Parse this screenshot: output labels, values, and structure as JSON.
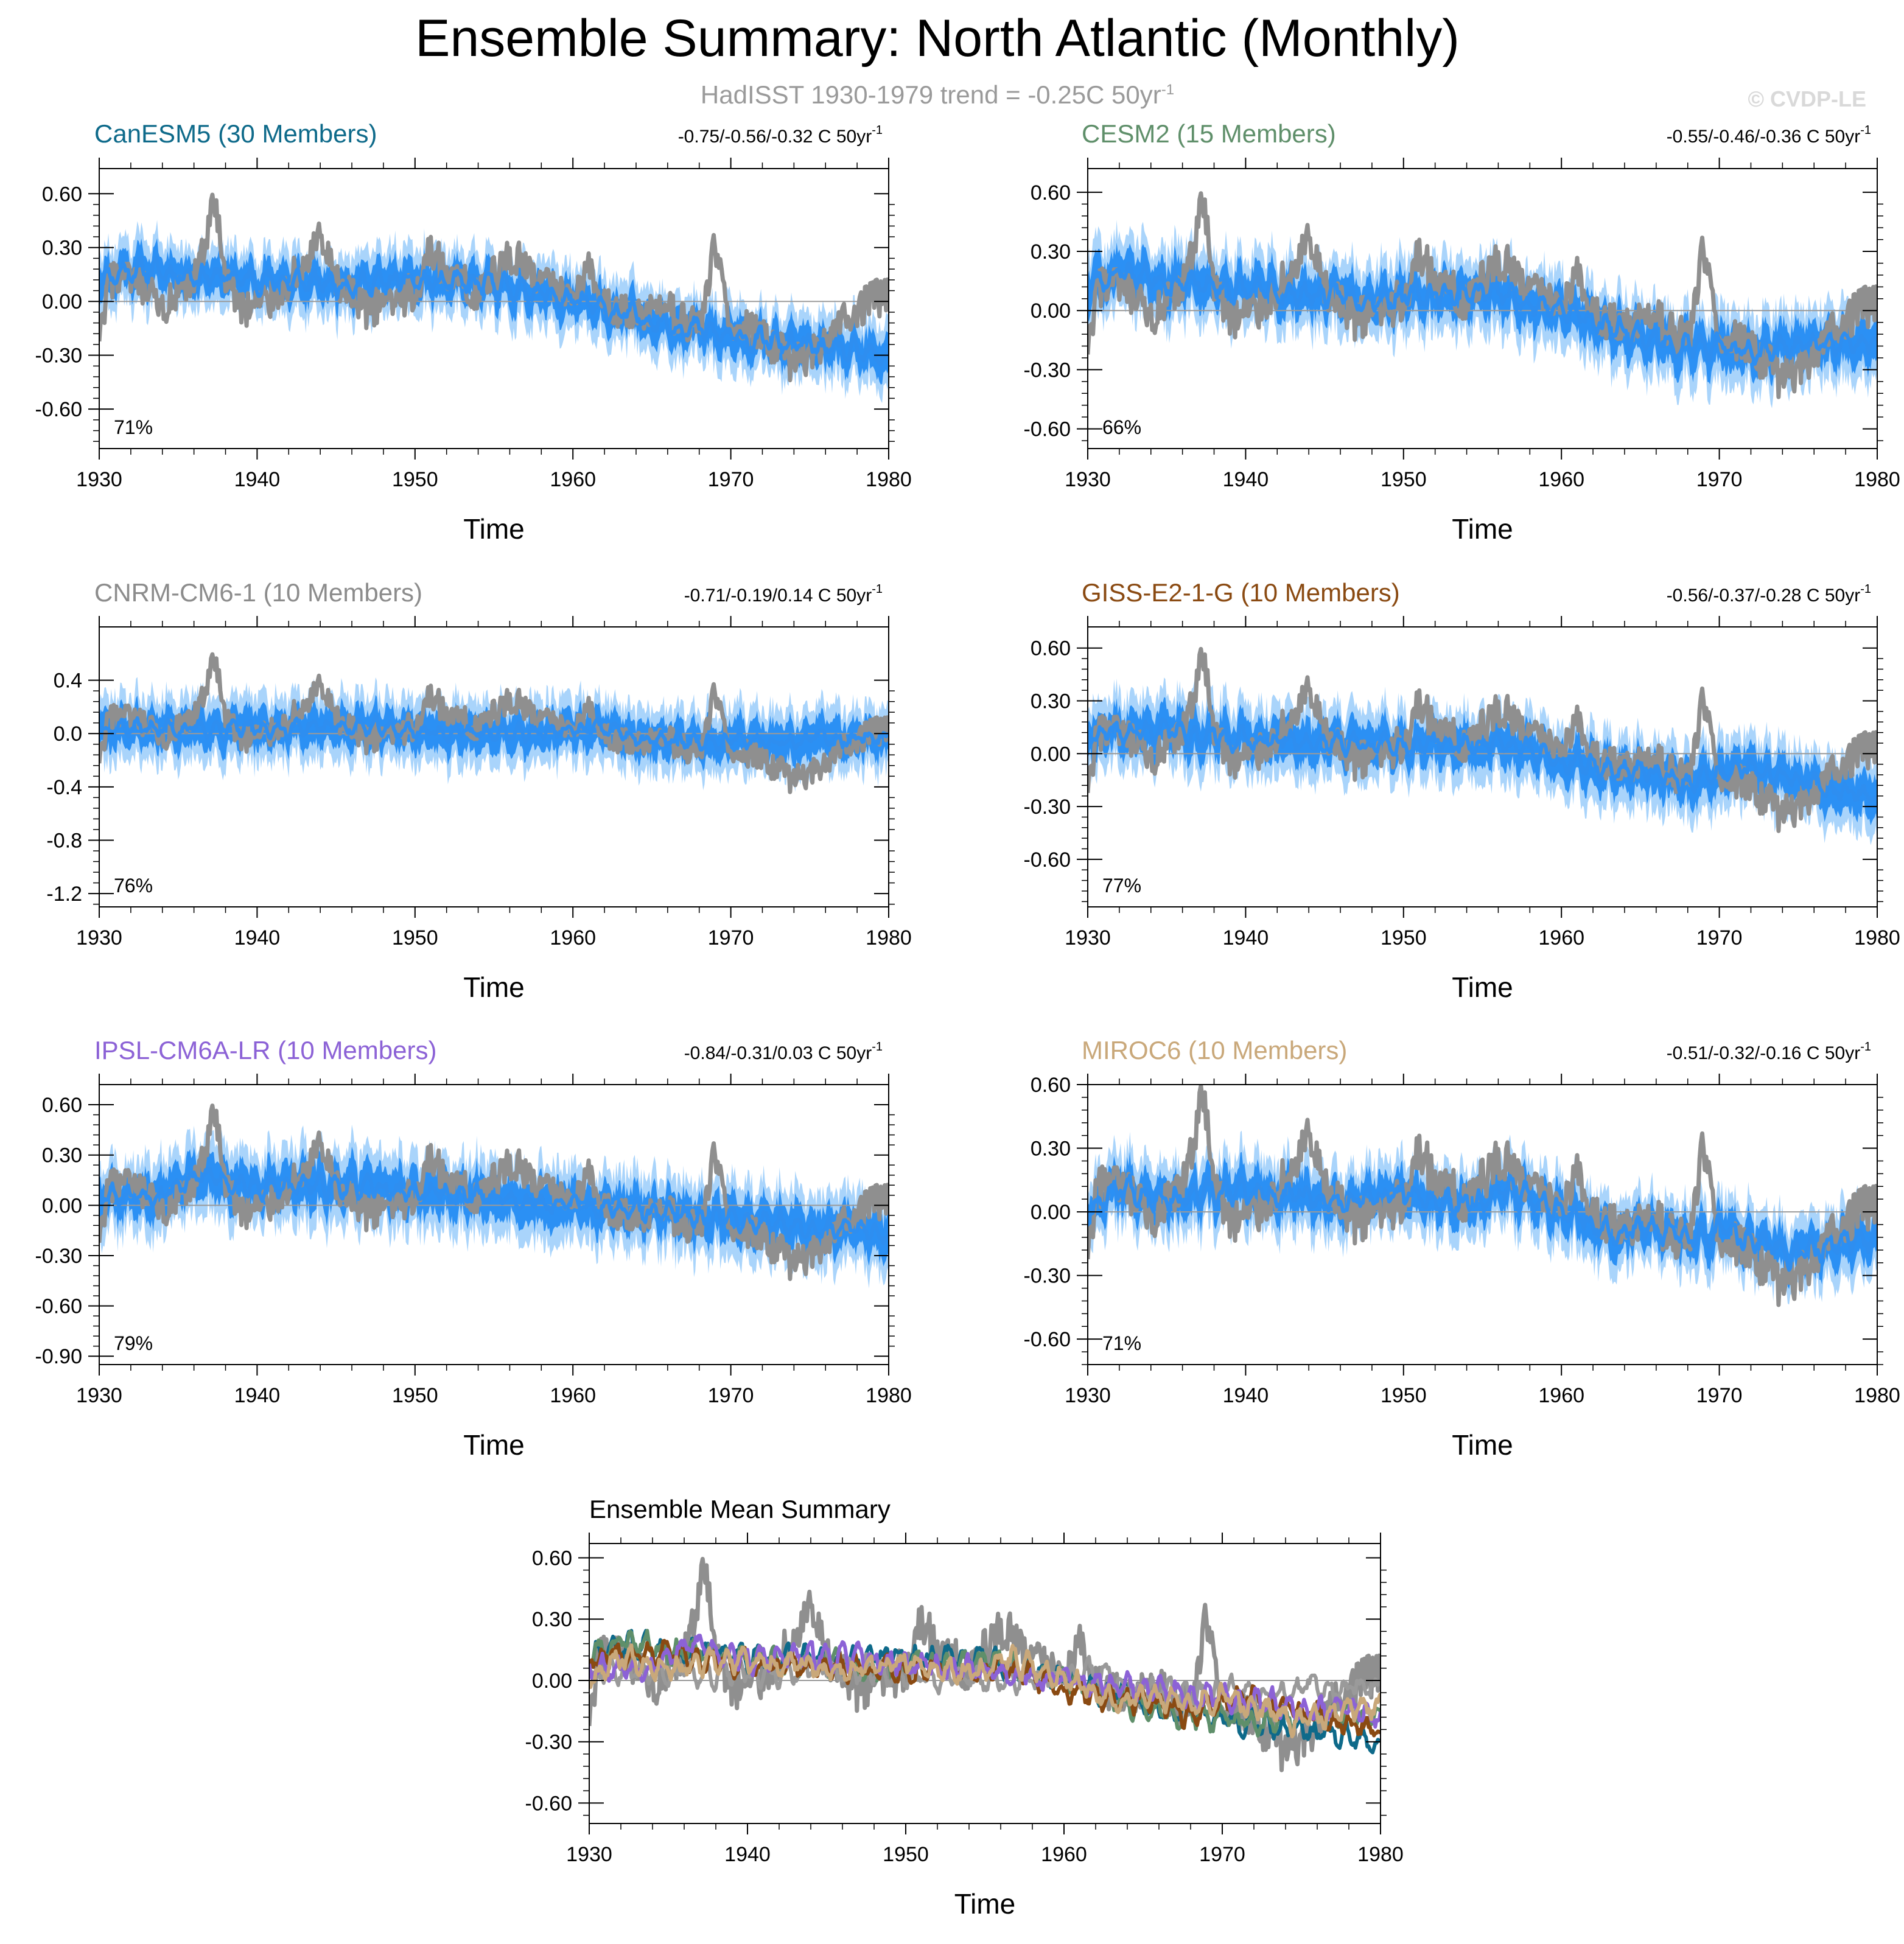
{
  "title": "Ensemble Summary: North Atlantic (Monthly)",
  "subtitle": "HadISST 1930-1979 trend = -0.25C 50yr",
  "subtitle_superscript": "-1",
  "watermark": "© CVDP-LE",
  "colors": {
    "observations": "#8f8f8f",
    "ensemble_mean": "#2e8ef0",
    "range_light": "#a9d4fb",
    "range_dark": "#2b90f4"
  },
  "chart_data": [
    {
      "id": "canesm5",
      "type": "area",
      "title": "CanESM5 (30 Members)",
      "title_color": "#0e6a8a",
      "trend_label": "-0.75/-0.56/-0.32 C 50yr",
      "trend_superscript": "-1",
      "percent_label": "71%",
      "xlabel": "Time",
      "xlim": [
        1930,
        1980
      ],
      "ylim": [
        -0.82,
        0.74
      ],
      "yticks": [
        0.6,
        0.3,
        0.0,
        -0.3,
        -0.6
      ],
      "ytick_labels": [
        "0.60",
        "0.30",
        "0.00",
        "-0.30",
        "-0.60"
      ],
      "xticks": [
        1930,
        1940,
        1950,
        1960,
        1970,
        1980
      ],
      "xtick_labels": [
        "1930",
        "1940",
        "1950",
        "1960",
        "1970",
        "1980"
      ],
      "ensemble_mean_anchors": [
        [
          1930,
          0.13
        ],
        [
          1932,
          0.18
        ],
        [
          1936,
          0.15
        ],
        [
          1940,
          0.12
        ],
        [
          1945,
          0.1
        ],
        [
          1950,
          0.11
        ],
        [
          1955,
          0.09
        ],
        [
          1958,
          0.05
        ],
        [
          1962,
          -0.05
        ],
        [
          1966,
          -0.12
        ],
        [
          1970,
          -0.2
        ],
        [
          1975,
          -0.25
        ],
        [
          1980,
          -0.32
        ]
      ],
      "spread": 0.16,
      "seed": 11
    },
    {
      "id": "cesm2",
      "type": "area",
      "title": "CESM2 (15 Members)",
      "title_color": "#5f8f6a",
      "trend_label": "-0.55/-0.46/-0.36 C 50yr",
      "trend_superscript": "-1",
      "percent_label": "66%",
      "xlabel": "Time",
      "xlim": [
        1930,
        1980
      ],
      "ylim": [
        -0.7,
        0.72
      ],
      "yticks": [
        0.6,
        0.3,
        0.0,
        -0.3,
        -0.6
      ],
      "ytick_labels": [
        "0.60",
        "0.30",
        "0.00",
        "-0.30",
        "-0.60"
      ],
      "xticks": [
        1930,
        1940,
        1950,
        1960,
        1970,
        1980
      ],
      "xtick_labels": [
        "1930",
        "1940",
        "1950",
        "1960",
        "1970",
        "1980"
      ],
      "ensemble_mean_anchors": [
        [
          1930,
          0.12
        ],
        [
          1932,
          0.2
        ],
        [
          1936,
          0.14
        ],
        [
          1940,
          0.1
        ],
        [
          1945,
          0.08
        ],
        [
          1950,
          0.07
        ],
        [
          1955,
          0.1
        ],
        [
          1958,
          0.05
        ],
        [
          1962,
          -0.05
        ],
        [
          1966,
          -0.15
        ],
        [
          1970,
          -0.2
        ],
        [
          1975,
          -0.18
        ],
        [
          1980,
          -0.17
        ]
      ],
      "spread": 0.17,
      "seed": 23
    },
    {
      "id": "cnrm",
      "type": "area",
      "title": "CNRM-CM6-1 (10 Members)",
      "title_color": "#8c8c8c",
      "trend_label": "-0.71/-0.19/0.14 C 50yr",
      "trend_superscript": "-1",
      "percent_label": "76%",
      "xlabel": "Time",
      "xlim": [
        1930,
        1980
      ],
      "ylim": [
        -1.3,
        0.8
      ],
      "yticks": [
        0.4,
        0.0,
        -0.4,
        -0.8,
        -1.2
      ],
      "ytick_labels": [
        "0.4",
        "0.0",
        "-0.4",
        "-0.8",
        "-1.2"
      ],
      "xticks": [
        1930,
        1940,
        1950,
        1960,
        1970,
        1980
      ],
      "xtick_labels": [
        "1930",
        "1940",
        "1950",
        "1960",
        "1970",
        "1980"
      ],
      "ensemble_mean_anchors": [
        [
          1930,
          0.05
        ],
        [
          1935,
          0.04
        ],
        [
          1940,
          0.03
        ],
        [
          1945,
          0.06
        ],
        [
          1950,
          0.02
        ],
        [
          1955,
          0.0
        ],
        [
          1960,
          0.02
        ],
        [
          1963,
          0.03
        ],
        [
          1964,
          -0.06
        ],
        [
          1970,
          -0.05
        ],
        [
          1975,
          -0.04
        ],
        [
          1980,
          -0.02
        ]
      ],
      "spread": 0.22,
      "seed": 37
    },
    {
      "id": "giss",
      "type": "area",
      "title": "GISS-E2-1-G (10 Members)",
      "title_color": "#8a4a12",
      "trend_label": "-0.56/-0.37/-0.28 C 50yr",
      "trend_superscript": "-1",
      "percent_label": "77%",
      "xlabel": "Time",
      "xlim": [
        1930,
        1980
      ],
      "ylim": [
        -0.87,
        0.72
      ],
      "yticks": [
        0.6,
        0.3,
        0.0,
        -0.3,
        -0.6
      ],
      "ytick_labels": [
        "0.60",
        "0.30",
        "0.00",
        "-0.30",
        "-0.60"
      ],
      "xticks": [
        1930,
        1940,
        1950,
        1960,
        1970,
        1980
      ],
      "xtick_labels": [
        "1930",
        "1940",
        "1950",
        "1960",
        "1970",
        "1980"
      ],
      "ensemble_mean_anchors": [
        [
          1930,
          0.1
        ],
        [
          1935,
          0.13
        ],
        [
          1940,
          0.08
        ],
        [
          1945,
          0.07
        ],
        [
          1950,
          0.05
        ],
        [
          1955,
          0.06
        ],
        [
          1958,
          0.02
        ],
        [
          1962,
          -0.08
        ],
        [
          1966,
          -0.1
        ],
        [
          1968,
          -0.18
        ],
        [
          1971,
          -0.08
        ],
        [
          1975,
          -0.15
        ],
        [
          1980,
          -0.26
        ]
      ],
      "spread": 0.18,
      "seed": 41
    },
    {
      "id": "ipsl",
      "type": "area",
      "title": "IPSL-CM6A-LR (10 Members)",
      "title_color": "#8c62d6",
      "trend_label": "-0.84/-0.31/0.03 C 50yr",
      "trend_superscript": "-1",
      "percent_label": "79%",
      "xlabel": "Time",
      "xlim": [
        1930,
        1980
      ],
      "ylim": [
        -0.95,
        0.72
      ],
      "yticks": [
        0.6,
        0.3,
        0.0,
        -0.3,
        -0.6,
        -0.9
      ],
      "ytick_labels": [
        "0.60",
        "0.30",
        "0.00",
        "-0.30",
        "-0.60",
        "-0.90"
      ],
      "xticks": [
        1930,
        1940,
        1950,
        1960,
        1970,
        1980
      ],
      "xtick_labels": [
        "1930",
        "1940",
        "1950",
        "1960",
        "1970",
        "1980"
      ],
      "ensemble_mean_anchors": [
        [
          1930,
          0.08
        ],
        [
          1933,
          0.06
        ],
        [
          1937,
          0.18
        ],
        [
          1940,
          0.1
        ],
        [
          1945,
          0.12
        ],
        [
          1950,
          0.08
        ],
        [
          1955,
          0.05
        ],
        [
          1960,
          0.0
        ],
        [
          1965,
          -0.05
        ],
        [
          1970,
          -0.08
        ],
        [
          1975,
          -0.12
        ],
        [
          1980,
          -0.16
        ]
      ],
      "spread": 0.2,
      "seed": 53
    },
    {
      "id": "miroc6",
      "type": "area",
      "title": "MIROC6 (10 Members)",
      "title_color": "#c9a87a",
      "trend_label": "-0.51/-0.32/-0.16 C 50yr",
      "trend_superscript": "-1",
      "percent_label": "71%",
      "xlabel": "Time",
      "xlim": [
        1930,
        1980
      ],
      "ylim": [
        -0.72,
        0.6
      ],
      "yticks": [
        0.6,
        0.3,
        0.0,
        -0.3,
        -0.6
      ],
      "ytick_labels": [
        "0.60",
        "0.30",
        "0.00",
        "-0.30",
        "-0.60"
      ],
      "xticks": [
        1930,
        1940,
        1950,
        1960,
        1970,
        1980
      ],
      "xtick_labels": [
        "1930",
        "1940",
        "1950",
        "1960",
        "1970",
        "1980"
      ],
      "ensemble_mean_anchors": [
        [
          1930,
          0.02
        ],
        [
          1932,
          0.12
        ],
        [
          1936,
          0.06
        ],
        [
          1940,
          0.1
        ],
        [
          1945,
          0.05
        ],
        [
          1950,
          0.08
        ],
        [
          1953,
          0.03
        ],
        [
          1957,
          0.1
        ],
        [
          1960,
          0.02
        ],
        [
          1963,
          -0.08
        ],
        [
          1967,
          -0.1
        ],
        [
          1970,
          -0.08
        ],
        [
          1975,
          -0.2
        ],
        [
          1980,
          -0.12
        ]
      ],
      "spread": 0.15,
      "seed": 67
    },
    {
      "id": "ensemble-mean-summary",
      "type": "line",
      "title": "Ensemble Mean Summary",
      "title_color": "#000000",
      "xlabel": "Time",
      "xlim": [
        1930,
        1980
      ],
      "ylim": [
        -0.7,
        0.67
      ],
      "yticks": [
        0.6,
        0.3,
        0.0,
        -0.3,
        -0.6
      ],
      "ytick_labels": [
        "0.60",
        "0.30",
        "0.00",
        "-0.30",
        "-0.60"
      ],
      "xticks": [
        1930,
        1940,
        1950,
        1960,
        1970,
        1980
      ],
      "xtick_labels": [
        "1930",
        "1940",
        "1950",
        "1960",
        "1970",
        "1980"
      ],
      "series": [
        {
          "name": "CanESM5",
          "color": "#0e6a8a",
          "ref": "canesm5"
        },
        {
          "name": "CESM2",
          "color": "#5f8f6a",
          "ref": "cesm2"
        },
        {
          "name": "CNRM-CM6-1",
          "color": "#9a9a9a",
          "ref": "cnrm"
        },
        {
          "name": "GISS-E2-1-G",
          "color": "#8a4a12",
          "ref": "giss"
        },
        {
          "name": "IPSL-CM6A-LR",
          "color": "#8c62d6",
          "ref": "ipsl"
        },
        {
          "name": "MIROC6",
          "color": "#c9a87a",
          "ref": "miroc6"
        }
      ]
    }
  ],
  "observations_anchors": [
    [
      1930,
      -0.25
    ],
    [
      1930.5,
      0.05
    ],
    [
      1931,
      0.15
    ],
    [
      1933,
      0.05
    ],
    [
      1934,
      -0.05
    ],
    [
      1936,
      0.1
    ],
    [
      1937.3,
      0.55
    ],
    [
      1938,
      0.15
    ],
    [
      1939,
      -0.05
    ],
    [
      1941,
      0.02
    ],
    [
      1943,
      0.2
    ],
    [
      1944,
      0.35
    ],
    [
      1945,
      0.1
    ],
    [
      1947,
      -0.05
    ],
    [
      1949,
      0.02
    ],
    [
      1950,
      0.05
    ],
    [
      1951,
      0.3
    ],
    [
      1952,
      0.15
    ],
    [
      1954,
      0.05
    ],
    [
      1956,
      0.25
    ],
    [
      1957,
      0.2
    ],
    [
      1958,
      0.1
    ],
    [
      1960,
      0.05
    ],
    [
      1961,
      0.18
    ],
    [
      1962,
      0.0
    ],
    [
      1964,
      -0.1
    ],
    [
      1966,
      -0.05
    ],
    [
      1968,
      -0.15
    ],
    [
      1969,
      0.3
    ],
    [
      1970,
      -0.1
    ],
    [
      1972,
      -0.2
    ],
    [
      1974,
      -0.35
    ],
    [
      1975,
      -0.3
    ],
    [
      1977,
      -0.1
    ],
    [
      1979,
      0.02
    ],
    [
      1980,
      0.03
    ]
  ]
}
